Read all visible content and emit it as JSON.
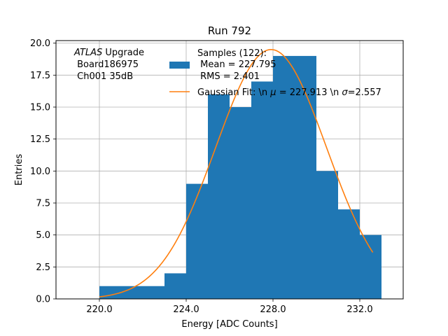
{
  "chart_data": {
    "type": "bar",
    "title": "Run 792",
    "xlabel": "Energy [ADC Counts]",
    "ylabel": "Entries",
    "xlim": [
      218.0,
      234.0
    ],
    "ylim": [
      0,
      20.2
    ],
    "x_ticks": [
      220.0,
      224.0,
      228.0,
      232.0
    ],
    "x_tick_labels": [
      "220.0",
      "224.0",
      "228.0",
      "232.0"
    ],
    "y_ticks": [
      0,
      2.5,
      5,
      7.5,
      10,
      12.5,
      15,
      17.5,
      20
    ],
    "y_tick_labels": [
      "0.0",
      "2.5",
      "5.0",
      "7.5",
      "10.0",
      "12.5",
      "15.0",
      "17.5",
      "20.0"
    ],
    "grid": true,
    "colors": {
      "bars": "#1f77b4",
      "fit": "#ff7f0e",
      "grid": "#b0b0b0"
    },
    "histogram": {
      "name": "Samples (122):\n Mean = 227.795\n RMS = 2.401",
      "bin_edges": [
        220,
        221,
        222,
        223,
        224,
        225,
        226,
        227,
        228,
        229,
        230,
        231,
        232,
        233
      ],
      "values": [
        1,
        1,
        1,
        2,
        9,
        16,
        15,
        17,
        19,
        19,
        10,
        7,
        5
      ]
    },
    "fit": {
      "name": "Gaussian Fit: \\n $\\mu$ = 227.913 \\n $\\sigma$=2.557",
      "name_parts": [
        "Gaussian Fit: \\n ",
        "μ",
        " = 227.913 \\n ",
        "σ",
        "=2.557"
      ],
      "mu": 227.913,
      "sigma": 2.557,
      "amplitude": 19.5,
      "x_range": [
        220.0,
        232.6
      ]
    },
    "legend": {
      "placement": "top-center",
      "hist_lines": [
        "Samples (122):",
        " Mean = 227.795",
        " RMS = 2.401"
      ]
    },
    "annotation": {
      "lines": [
        "ATLAS Upgrade",
        " Board186975",
        " Ch001 35dB"
      ],
      "italic_word": "ATLAS",
      "rest_first_line": " Upgrade"
    }
  }
}
